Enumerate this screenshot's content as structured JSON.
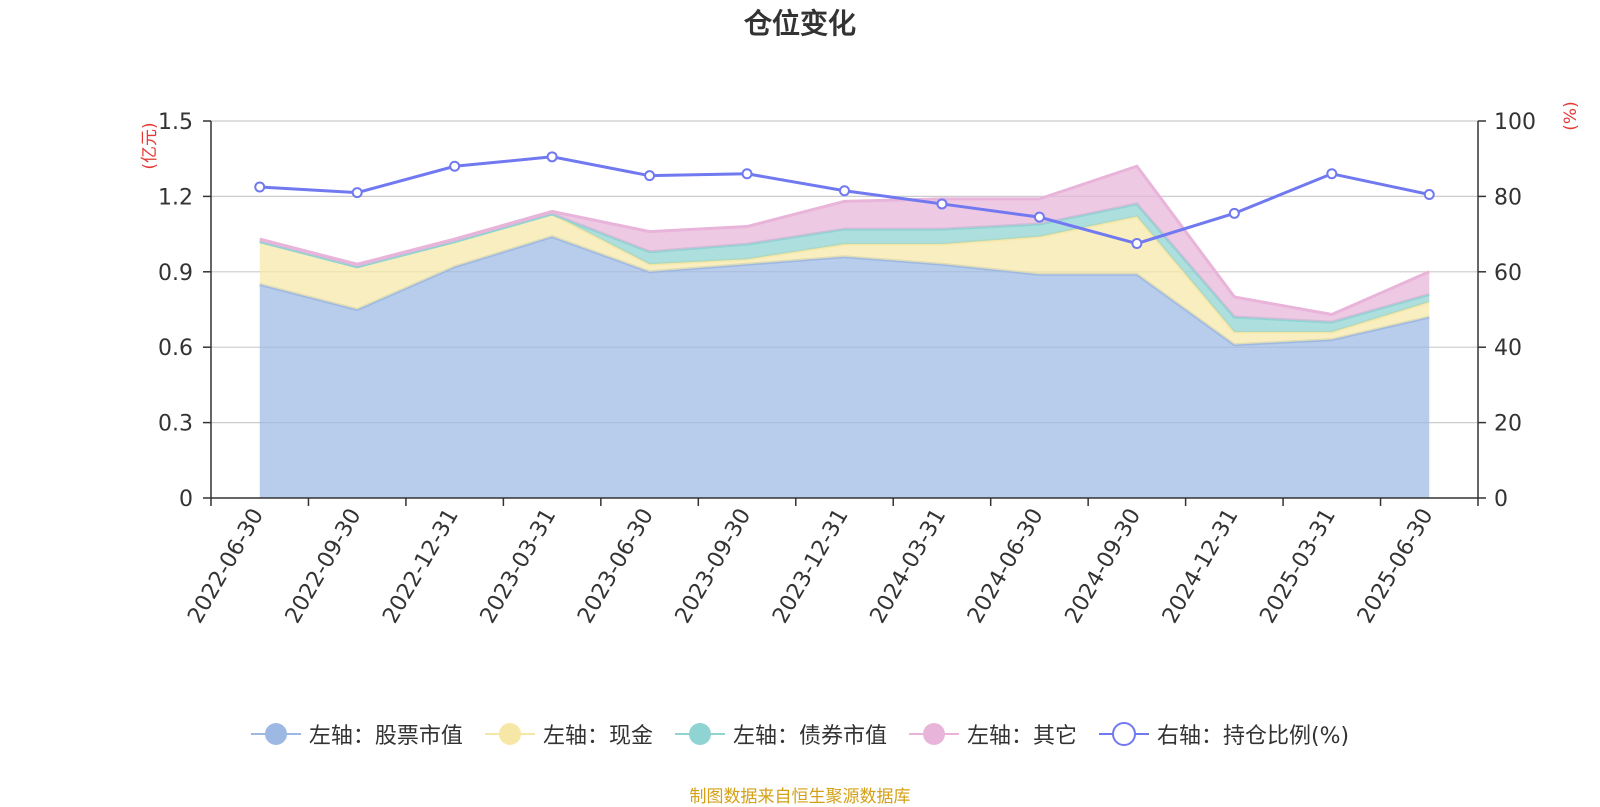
{
  "chart_data": {
    "type": "area",
    "title": "仓位变化",
    "categories": [
      "2022-06-30",
      "2022-09-30",
      "2022-12-31",
      "2023-03-31",
      "2023-06-30",
      "2023-09-30",
      "2023-12-31",
      "2024-03-31",
      "2024-06-30",
      "2024-09-30",
      "2024-12-31",
      "2025-03-31",
      "2025-06-30"
    ],
    "stacked": true,
    "left_axis": {
      "label": "(亿元)",
      "ticks": [
        "0",
        "0.3",
        "0.6",
        "0.9",
        "1.2",
        "1.5"
      ],
      "ylim": [
        0,
        1.5
      ]
    },
    "right_axis": {
      "label": "(%)",
      "ticks": [
        "0",
        "20",
        "40",
        "60",
        "80",
        "100"
      ],
      "ylim": [
        0,
        100
      ]
    },
    "series": [
      {
        "name": "左轴：股票市值",
        "axis": "left",
        "color": "#9db9e3",
        "values": [
          0.85,
          0.75,
          0.92,
          1.04,
          0.9,
          0.93,
          0.96,
          0.93,
          0.89,
          0.89,
          0.61,
          0.63,
          0.72
        ]
      },
      {
        "name": "左轴：现金",
        "axis": "left",
        "color": "#f7e7a6",
        "values": [
          0.17,
          0.17,
          0.1,
          0.09,
          0.03,
          0.02,
          0.05,
          0.08,
          0.15,
          0.23,
          0.05,
          0.03,
          0.06
        ]
      },
      {
        "name": "左轴：债券市值",
        "axis": "left",
        "color": "#8fd3d3",
        "values": [
          0.0,
          0.0,
          0.0,
          0.0,
          0.05,
          0.06,
          0.06,
          0.06,
          0.05,
          0.05,
          0.06,
          0.04,
          0.03
        ]
      },
      {
        "name": "左轴：其它",
        "axis": "left",
        "color": "#e8b4da",
        "values": [
          0.01,
          0.01,
          0.01,
          0.01,
          0.08,
          0.07,
          0.11,
          0.12,
          0.1,
          0.15,
          0.08,
          0.03,
          0.09
        ]
      },
      {
        "name": "右轴：持仓比例(%)",
        "axis": "right",
        "color": "#7179f0",
        "type": "line",
        "values": [
          82.5,
          81.0,
          88.0,
          90.5,
          85.5,
          86.0,
          81.5,
          78.0,
          74.5,
          67.5,
          75.5,
          86.0,
          80.5
        ]
      }
    ],
    "grid": true,
    "legend_position": "bottom"
  },
  "footer": {
    "source": "制图数据来自恒生聚源数据库"
  }
}
